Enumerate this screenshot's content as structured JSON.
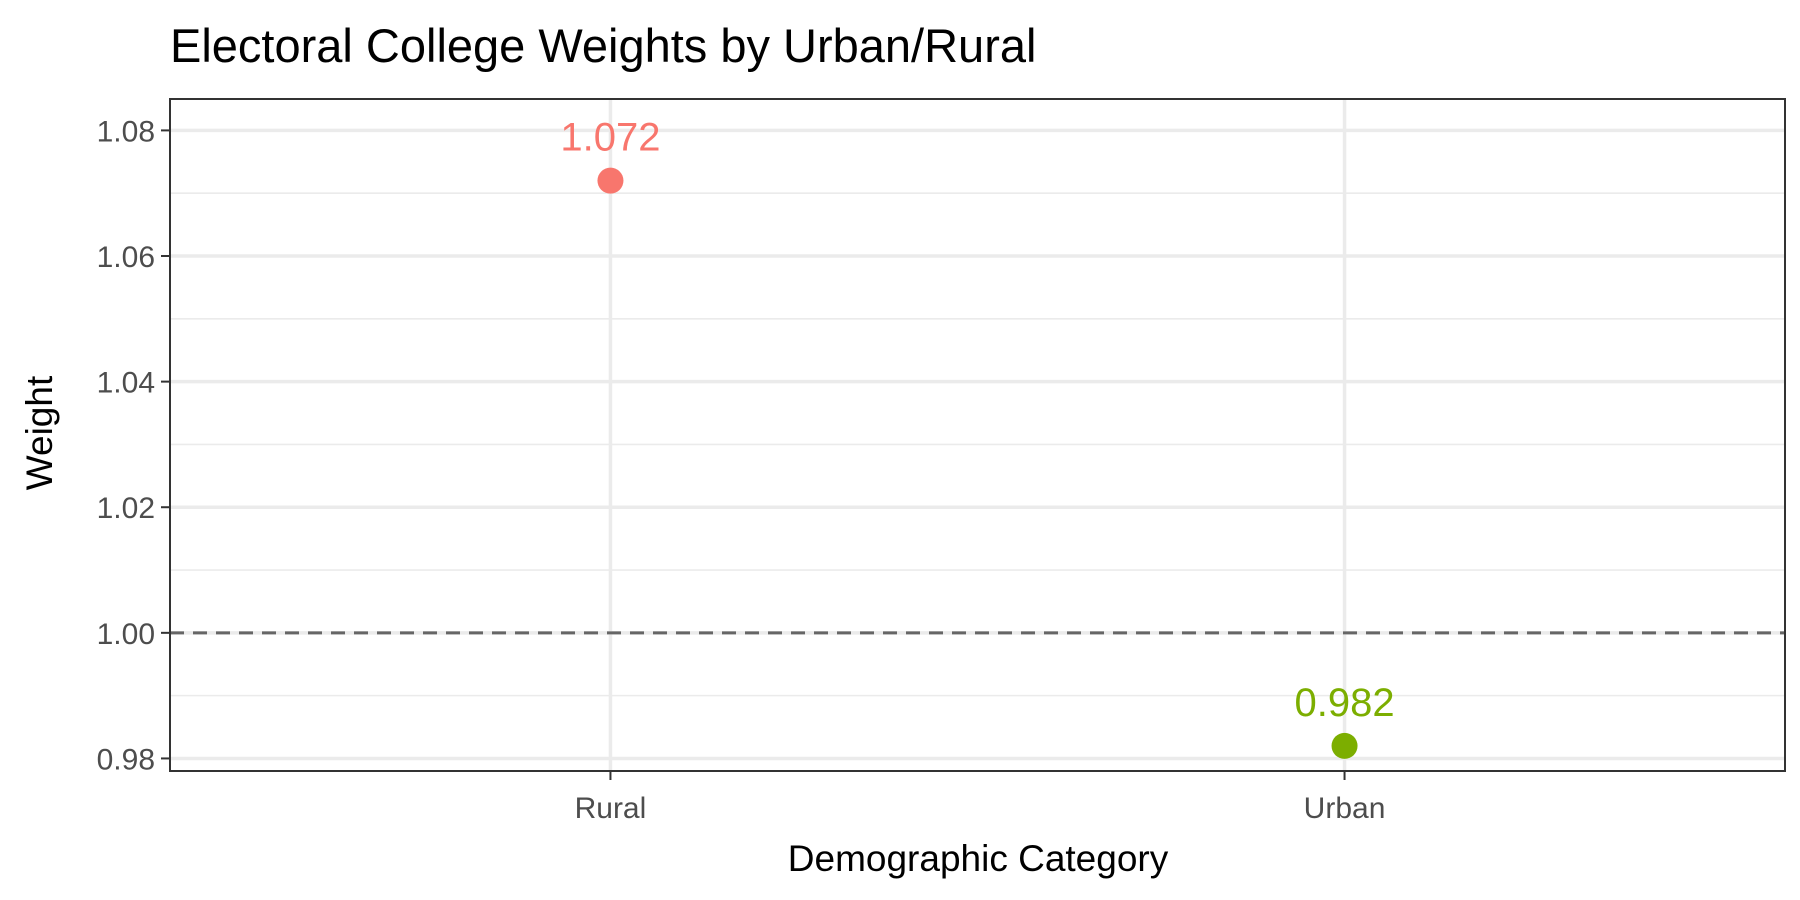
{
  "chart_data": {
    "type": "scatter",
    "title": "Electoral College Weights by Urban/Rural",
    "xlabel": "Demographic Category",
    "ylabel": "Weight",
    "categories": [
      "Rural",
      "Urban"
    ],
    "values": [
      1.072,
      0.982
    ],
    "data_labels": [
      "1.072",
      "0.982"
    ],
    "point_colors": [
      "#F8766D",
      "#7CAE00"
    ],
    "ylim": [
      0.978,
      1.085
    ],
    "y_ticks": [
      0.98,
      1.0,
      1.02,
      1.04,
      1.06,
      1.08
    ],
    "y_tick_labels": [
      "0.98",
      "1.00",
      "1.02",
      "1.04",
      "1.06",
      "1.08"
    ],
    "y_minor_ticks": [
      0.99,
      1.01,
      1.03,
      1.05,
      1.07
    ],
    "reference_line": {
      "y": 1.0,
      "style": "dashed",
      "color": "#666666"
    },
    "grid": true,
    "legend": "none"
  }
}
